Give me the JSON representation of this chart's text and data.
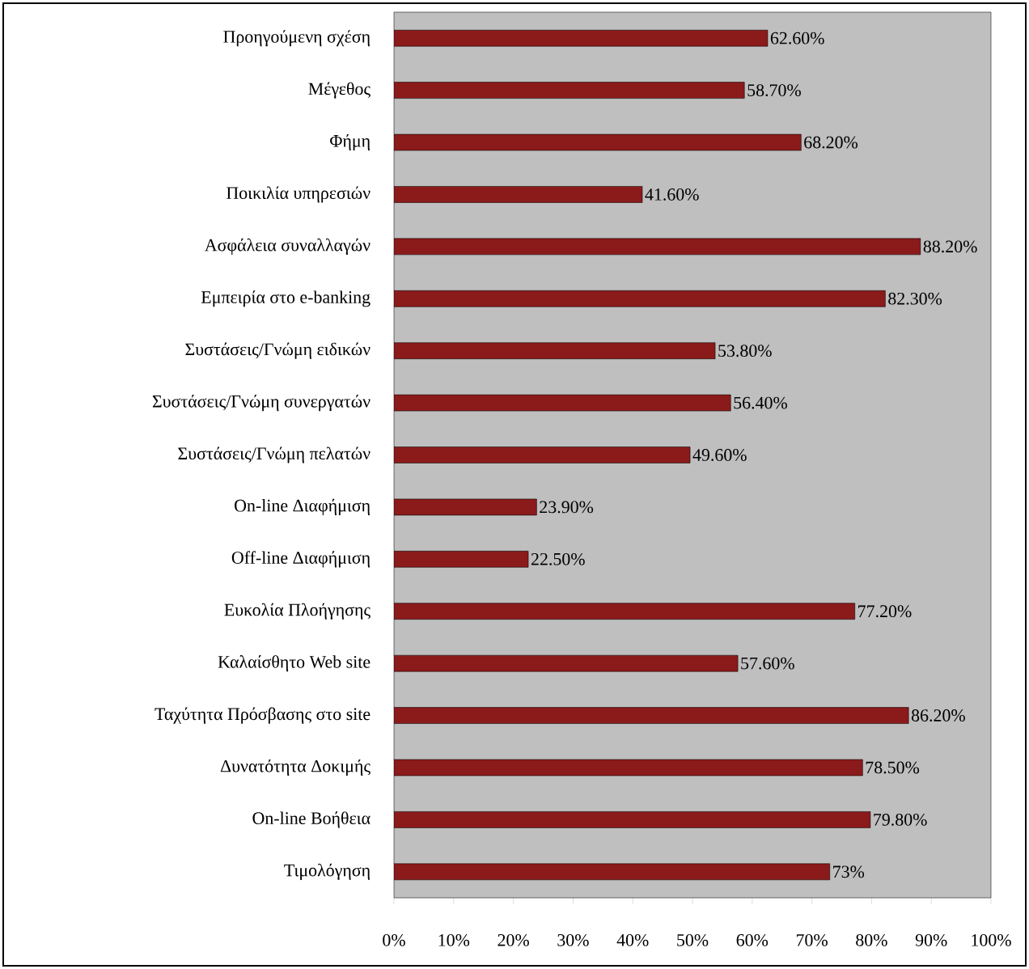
{
  "chart_data": {
    "type": "bar",
    "orientation": "horizontal",
    "categories": [
      "Προηγούμενη σχέση",
      "Μέγεθος",
      "Φήμη",
      "Ποικιλία υπηρεσιών",
      "Ασφάλεια συναλλαγών",
      "Εμπειρία στο e-banking",
      "Συστάσεις/Γνώμη ειδικών",
      "Συστάσεις/Γνώμη συνεργατών",
      "Συστάσεις/Γνώμη πελατών",
      "On-line Διαφήμιση",
      "Off-line Διαφήμιση",
      "Ευκολία Πλοήγησης",
      "Καλαίσθητο Web site",
      "Ταχύτητα Πρόσβασης στο site",
      "Δυνατότητα Δοκιμής",
      "On-line Βοήθεια",
      "Τιμολόγηση"
    ],
    "values": [
      62.6,
      58.7,
      68.2,
      41.6,
      88.2,
      82.3,
      53.8,
      56.4,
      49.6,
      23.9,
      22.5,
      77.2,
      57.6,
      86.2,
      78.5,
      79.8,
      73
    ],
    "value_labels": [
      "62.60%",
      "58.70%",
      "68.20%",
      "41.60%",
      "88.20%",
      "82.30%",
      "53.80%",
      "56.40%",
      "49.60%",
      "23.90%",
      "22.50%",
      "77.20%",
      "57.60%",
      "86.20%",
      "78.50%",
      "79.80%",
      "73%"
    ],
    "color": "#8b1a1a",
    "xlim": [
      0,
      100
    ],
    "xticks": [
      {
        "value": 0,
        "label": "0%"
      },
      {
        "value": 10,
        "label": "10%"
      },
      {
        "value": 20,
        "label": "20%"
      },
      {
        "value": 30,
        "label": "30%"
      },
      {
        "value": 40,
        "label": "40%"
      },
      {
        "value": 50,
        "label": "50%"
      },
      {
        "value": 60,
        "label": "60%"
      },
      {
        "value": 70,
        "label": "70%"
      },
      {
        "value": 80,
        "label": "80%"
      },
      {
        "value": 90,
        "label": "90%"
      },
      {
        "value": 100,
        "label": "100%"
      }
    ]
  }
}
